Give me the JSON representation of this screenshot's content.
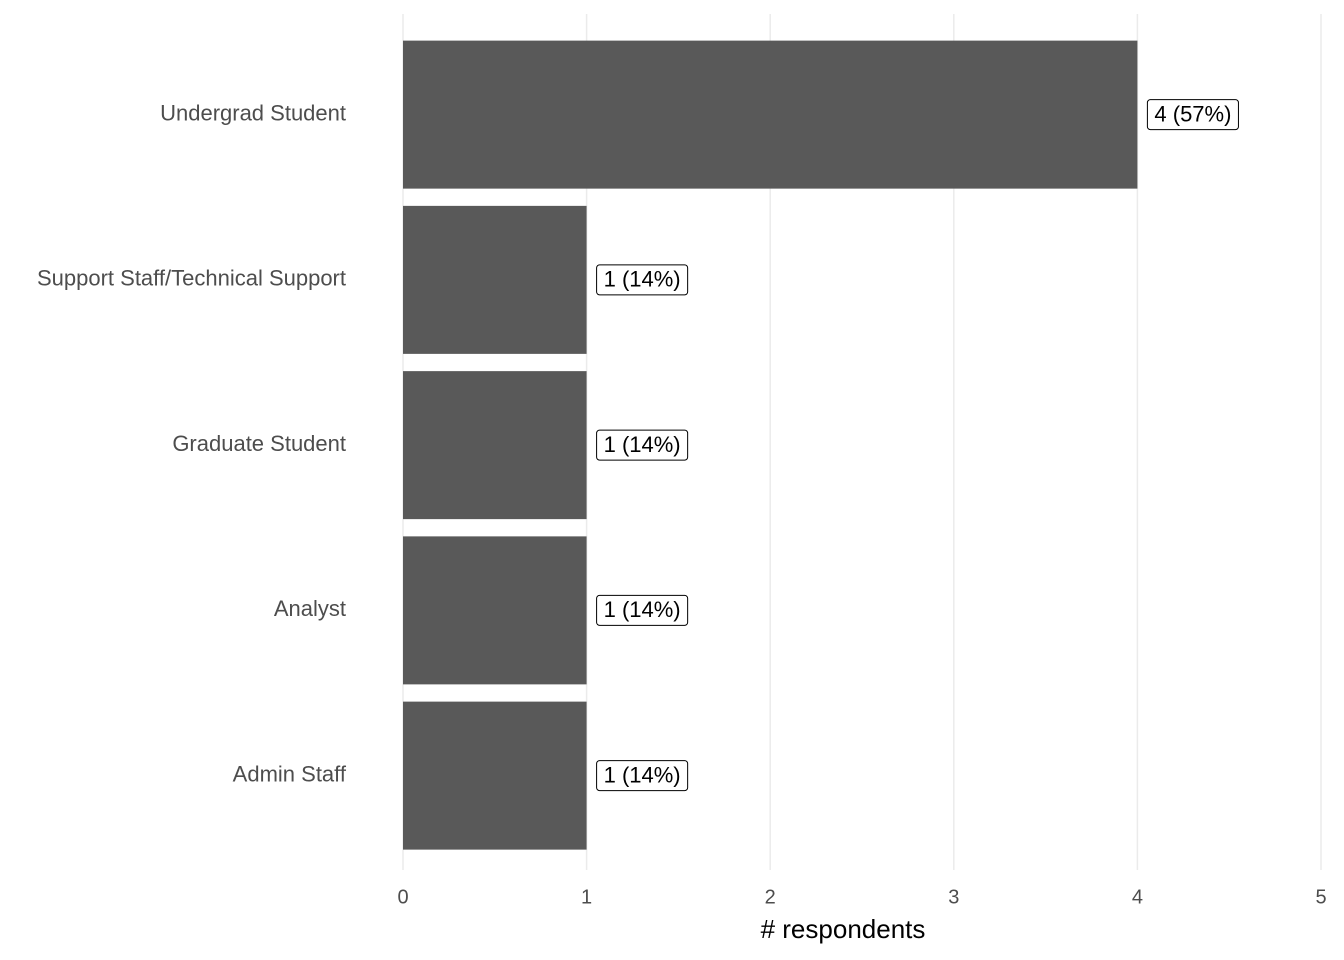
{
  "chart_data": {
    "type": "barh",
    "xlabel": "# respondents",
    "categories": [
      "Undergrad Student",
      "Support Staff/Technical Support",
      "Graduate Student",
      "Analyst",
      "Admin Staff"
    ],
    "values": [
      4,
      1,
      1,
      1,
      1
    ],
    "value_labels": [
      "4 (57%)",
      "1 (14%)",
      "1 (14%)",
      "1 (14%)",
      "1 (14%)"
    ],
    "color": "#595959",
    "xlim": [
      0,
      5
    ],
    "xticks": [
      0,
      1,
      2,
      3,
      4,
      5
    ],
    "grid": true
  }
}
